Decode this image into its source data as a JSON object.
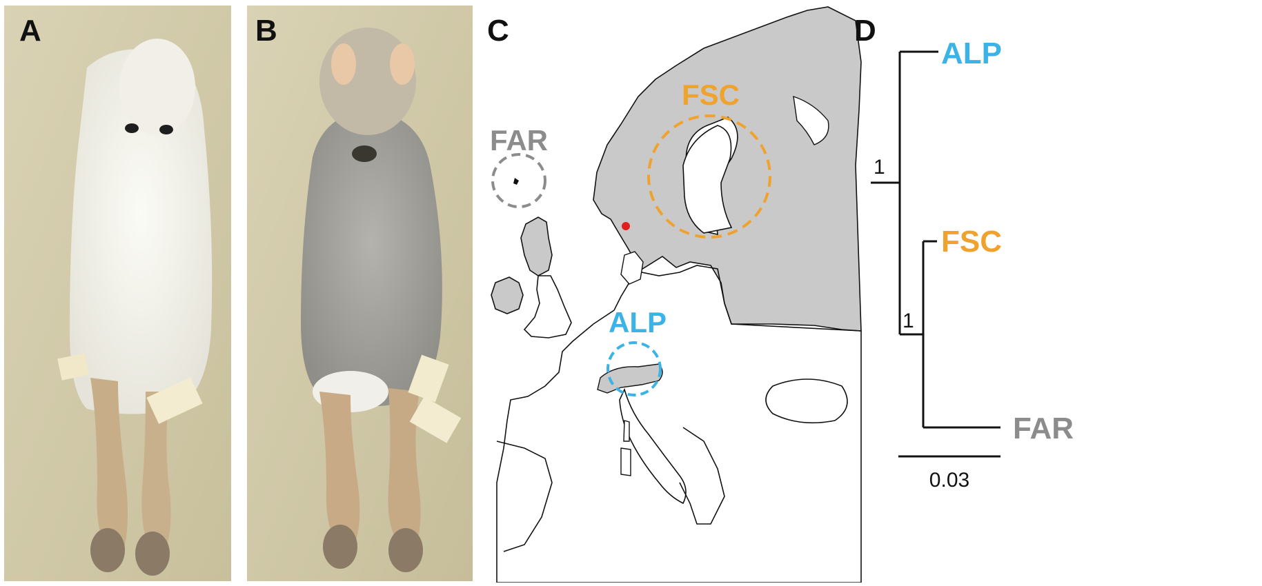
{
  "panels": {
    "a": {
      "letter": "A"
    },
    "b": {
      "letter": "B"
    },
    "c": {
      "letter": "C"
    },
    "d": {
      "letter": "D"
    }
  },
  "map": {
    "regions": [
      {
        "code": "FAR",
        "color": "#8c8c8c"
      },
      {
        "code": "FSC",
        "color": "#f0a22e"
      },
      {
        "code": "ALP",
        "color": "#3bb3e6"
      }
    ],
    "land_color": "#c9c9c9",
    "sample_point_color": "#e02020"
  },
  "tree": {
    "taxa": [
      {
        "name": "ALP",
        "color": "#3bb3e6"
      },
      {
        "name": "FSC",
        "color": "#f0a22e"
      },
      {
        "name": "FAR",
        "color": "#8c8c8c"
      }
    ],
    "support_root": "1",
    "support_inner": "1",
    "scale_label": "0.03"
  }
}
